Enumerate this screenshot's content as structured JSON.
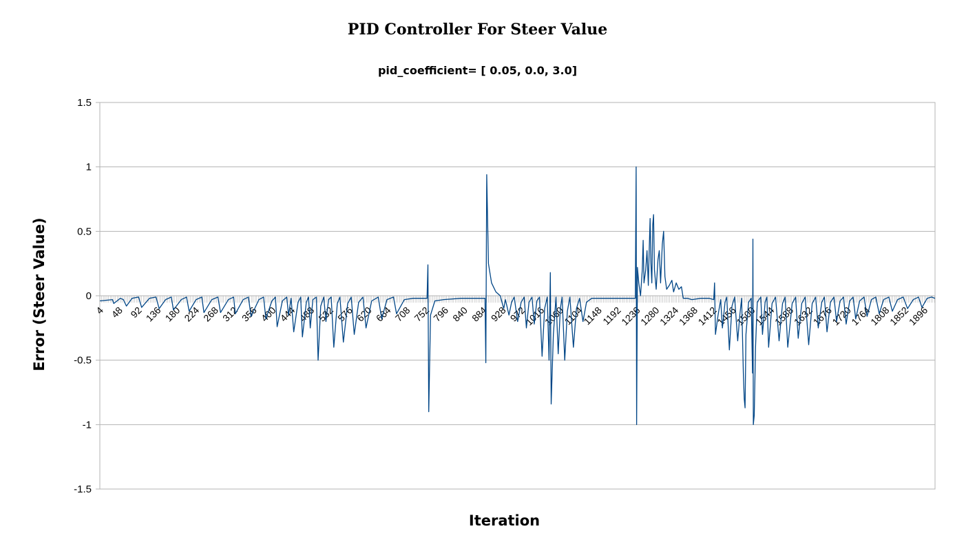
{
  "chart_data": {
    "type": "line",
    "title": "PID Controller For Steer Value",
    "subtitle": "pid_coefficient= [ 0.05, 0.0, 3.0]",
    "xlabel": "Iteration",
    "ylabel": "Error (Steer Value)",
    "ylim": [
      -1.5,
      1.5
    ],
    "yticks": [
      "1.5",
      "1",
      "0.5",
      "0",
      "-0.5",
      "-1",
      "-1.5"
    ],
    "xlim": [
      1,
      1918
    ],
    "xticks": [
      4,
      48,
      92,
      136,
      180,
      224,
      268,
      312,
      356,
      400,
      444,
      488,
      532,
      576,
      620,
      664,
      708,
      752,
      796,
      840,
      884,
      928,
      972,
      1016,
      1060,
      1104,
      1148,
      1192,
      1236,
      1280,
      1324,
      1368,
      1412,
      1456,
      1500,
      1544,
      1588,
      1632,
      1676,
      1720,
      1764,
      1808,
      1852,
      1896
    ],
    "grid": true,
    "legend": "none",
    "series_color": "#004586",
    "series": [
      {
        "points": [
          [
            1,
            -0.04
          ],
          [
            30,
            -0.03
          ],
          [
            33,
            -0.06
          ],
          [
            48,
            -0.02
          ],
          [
            55,
            -0.03
          ],
          [
            62,
            -0.08
          ],
          [
            75,
            -0.02
          ],
          [
            90,
            -0.01
          ],
          [
            97,
            -0.09
          ],
          [
            115,
            -0.02
          ],
          [
            130,
            -0.01
          ],
          [
            137,
            -0.1
          ],
          [
            152,
            -0.03
          ],
          [
            165,
            -0.01
          ],
          [
            170,
            -0.11
          ],
          [
            188,
            -0.03
          ],
          [
            200,
            -0.01
          ],
          [
            206,
            -0.12
          ],
          [
            222,
            -0.03
          ],
          [
            235,
            -0.01
          ],
          [
            240,
            -0.13
          ],
          [
            258,
            -0.03
          ],
          [
            272,
            -0.01
          ],
          [
            278,
            -0.13
          ],
          [
            296,
            -0.03
          ],
          [
            308,
            -0.01
          ],
          [
            312,
            -0.14
          ],
          [
            330,
            -0.03
          ],
          [
            342,
            -0.01
          ],
          [
            348,
            -0.16
          ],
          [
            366,
            -0.03
          ],
          [
            377,
            -0.01
          ],
          [
            382,
            -0.18
          ],
          [
            396,
            -0.04
          ],
          [
            404,
            -0.01
          ],
          [
            408,
            -0.24
          ],
          [
            420,
            -0.04
          ],
          [
            430,
            -0.01
          ],
          [
            434,
            -0.15
          ],
          [
            440,
            -0.02
          ],
          [
            446,
            -0.28
          ],
          [
            456,
            -0.05
          ],
          [
            462,
            -0.01
          ],
          [
            466,
            -0.32
          ],
          [
            475,
            -0.05
          ],
          [
            480,
            -0.01
          ],
          [
            484,
            -0.25
          ],
          [
            490,
            -0.03
          ],
          [
            498,
            -0.01
          ],
          [
            502,
            -0.5
          ],
          [
            508,
            -0.08
          ],
          [
            515,
            -0.01
          ],
          [
            520,
            -0.2
          ],
          [
            526,
            -0.03
          ],
          [
            532,
            -0.01
          ],
          [
            538,
            -0.4
          ],
          [
            546,
            -0.06
          ],
          [
            552,
            -0.01
          ],
          [
            560,
            -0.36
          ],
          [
            570,
            -0.06
          ],
          [
            578,
            -0.01
          ],
          [
            585,
            -0.3
          ],
          [
            595,
            -0.05
          ],
          [
            605,
            -0.01
          ],
          [
            612,
            -0.25
          ],
          [
            625,
            -0.04
          ],
          [
            640,
            -0.01
          ],
          [
            648,
            -0.18
          ],
          [
            660,
            -0.03
          ],
          [
            675,
            -0.01
          ],
          [
            682,
            -0.14
          ],
          [
            700,
            -0.03
          ],
          [
            720,
            -0.02
          ],
          [
            752,
            -0.02
          ],
          [
            754,
            0.24
          ],
          [
            756,
            -0.9
          ],
          [
            760,
            -0.15
          ],
          [
            770,
            -0.04
          ],
          [
            790,
            -0.03
          ],
          [
            830,
            -0.02
          ],
          [
            870,
            -0.02
          ],
          [
            885,
            -0.02
          ],
          [
            887,
            -0.52
          ],
          [
            889,
            0.94
          ],
          [
            893,
            0.25
          ],
          [
            900,
            0.1
          ],
          [
            910,
            0.03
          ],
          [
            920,
            0.0
          ],
          [
            928,
            -0.1
          ],
          [
            932,
            -0.03
          ],
          [
            940,
            -0.15
          ],
          [
            946,
            -0.05
          ],
          [
            952,
            -0.01
          ],
          [
            960,
            -0.2
          ],
          [
            968,
            -0.05
          ],
          [
            975,
            -0.01
          ],
          [
            980,
            -0.25
          ],
          [
            986,
            -0.05
          ],
          [
            993,
            -0.01
          ],
          [
            998,
            -0.22
          ],
          [
            1004,
            -0.04
          ],
          [
            1010,
            -0.01
          ],
          [
            1016,
            -0.47
          ],
          [
            1022,
            -0.1
          ],
          [
            1028,
            -0.01
          ],
          [
            1032,
            -0.5
          ],
          [
            1035,
            0.18
          ],
          [
            1037,
            -0.84
          ],
          [
            1042,
            -0.3
          ],
          [
            1048,
            -0.01
          ],
          [
            1053,
            -0.45
          ],
          [
            1058,
            -0.1
          ],
          [
            1062,
            -0.01
          ],
          [
            1068,
            -0.5
          ],
          [
            1074,
            -0.12
          ],
          [
            1080,
            -0.01
          ],
          [
            1088,
            -0.4
          ],
          [
            1095,
            -0.1
          ],
          [
            1102,
            -0.02
          ],
          [
            1110,
            -0.2
          ],
          [
            1118,
            -0.05
          ],
          [
            1130,
            -0.02
          ],
          [
            1148,
            -0.02
          ],
          [
            1180,
            -0.02
          ],
          [
            1210,
            -0.02
          ],
          [
            1230,
            -0.02
          ],
          [
            1232,
            1.0
          ],
          [
            1233,
            -1.0
          ],
          [
            1235,
            0.22
          ],
          [
            1238,
            0.1
          ],
          [
            1242,
            0.0
          ],
          [
            1246,
            0.2
          ],
          [
            1248,
            0.43
          ],
          [
            1250,
            0.1
          ],
          [
            1254,
            0.2
          ],
          [
            1257,
            0.35
          ],
          [
            1260,
            0.08
          ],
          [
            1262,
            0.36
          ],
          [
            1264,
            0.6
          ],
          [
            1266,
            0.25
          ],
          [
            1268,
            0.1
          ],
          [
            1270,
            0.55
          ],
          [
            1272,
            0.63
          ],
          [
            1274,
            0.2
          ],
          [
            1278,
            0.05
          ],
          [
            1282,
            0.28
          ],
          [
            1285,
            0.35
          ],
          [
            1288,
            0.1
          ],
          [
            1292,
            0.4
          ],
          [
            1295,
            0.5
          ],
          [
            1298,
            0.15
          ],
          [
            1302,
            0.05
          ],
          [
            1308,
            0.08
          ],
          [
            1314,
            0.12
          ],
          [
            1318,
            0.03
          ],
          [
            1324,
            0.1
          ],
          [
            1330,
            0.05
          ],
          [
            1336,
            0.07
          ],
          [
            1340,
            -0.02
          ],
          [
            1350,
            -0.02
          ],
          [
            1360,
            -0.03
          ],
          [
            1380,
            -0.02
          ],
          [
            1400,
            -0.02
          ],
          [
            1410,
            -0.03
          ],
          [
            1412,
            0.1
          ],
          [
            1414,
            -0.3
          ],
          [
            1420,
            -0.15
          ],
          [
            1426,
            -0.03
          ],
          [
            1430,
            -0.25
          ],
          [
            1436,
            -0.05
          ],
          [
            1440,
            -0.01
          ],
          [
            1446,
            -0.42
          ],
          [
            1452,
            -0.08
          ],
          [
            1458,
            -0.01
          ],
          [
            1465,
            -0.35
          ],
          [
            1470,
            -0.15
          ],
          [
            1474,
            -0.02
          ],
          [
            1478,
            -0.6
          ],
          [
            1480,
            -0.8
          ],
          [
            1482,
            -0.87
          ],
          [
            1484,
            -0.3
          ],
          [
            1490,
            -0.05
          ],
          [
            1496,
            -0.02
          ],
          [
            1499,
            -0.6
          ],
          [
            1500,
            0.44
          ],
          [
            1501,
            -1.0
          ],
          [
            1503,
            -0.93
          ],
          [
            1506,
            -0.4
          ],
          [
            1510,
            -0.05
          ],
          [
            1518,
            -0.01
          ],
          [
            1522,
            -0.3
          ],
          [
            1528,
            -0.05
          ],
          [
            1532,
            -0.01
          ],
          [
            1536,
            -0.4
          ],
          [
            1544,
            -0.06
          ],
          [
            1552,
            -0.01
          ],
          [
            1560,
            -0.35
          ],
          [
            1568,
            -0.06
          ],
          [
            1574,
            -0.01
          ],
          [
            1580,
            -0.4
          ],
          [
            1590,
            -0.06
          ],
          [
            1598,
            -0.01
          ],
          [
            1604,
            -0.33
          ],
          [
            1612,
            -0.06
          ],
          [
            1620,
            -0.01
          ],
          [
            1628,
            -0.38
          ],
          [
            1636,
            -0.06
          ],
          [
            1644,
            -0.01
          ],
          [
            1650,
            -0.25
          ],
          [
            1658,
            -0.05
          ],
          [
            1664,
            -0.01
          ],
          [
            1670,
            -0.28
          ],
          [
            1678,
            -0.05
          ],
          [
            1686,
            -0.01
          ],
          [
            1692,
            -0.2
          ],
          [
            1700,
            -0.04
          ],
          [
            1708,
            -0.01
          ],
          [
            1714,
            -0.22
          ],
          [
            1722,
            -0.04
          ],
          [
            1730,
            -0.01
          ],
          [
            1736,
            -0.18
          ],
          [
            1745,
            -0.04
          ],
          [
            1755,
            -0.01
          ],
          [
            1762,
            -0.16
          ],
          [
            1772,
            -0.03
          ],
          [
            1782,
            -0.01
          ],
          [
            1790,
            -0.14
          ],
          [
            1800,
            -0.03
          ],
          [
            1812,
            -0.01
          ],
          [
            1820,
            -0.12
          ],
          [
            1832,
            -0.03
          ],
          [
            1845,
            -0.01
          ],
          [
            1855,
            -0.1
          ],
          [
            1868,
            -0.03
          ],
          [
            1880,
            -0.01
          ],
          [
            1888,
            -0.09
          ],
          [
            1900,
            -0.02
          ],
          [
            1910,
            -0.01
          ],
          [
            1918,
            -0.02
          ]
        ]
      }
    ]
  }
}
